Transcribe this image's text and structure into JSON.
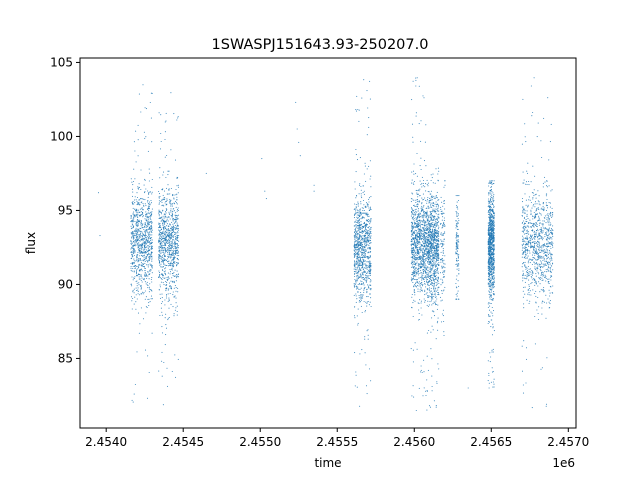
{
  "chart_data": {
    "type": "scatter",
    "title": "1SWASPJ151643.93-250207.0",
    "xlabel": "time",
    "ylabel": "flux",
    "x_offset_label": "1e6",
    "x_tick_labels": [
      "2.4540",
      "2.4545",
      "2.4550",
      "2.4555",
      "2.4560",
      "2.4565",
      "2.4570"
    ],
    "x_ticks": [
      2454000,
      2454500,
      2455000,
      2455500,
      2456000,
      2456500,
      2457000
    ],
    "y_tick_labels": [
      "85",
      "90",
      "95",
      "100",
      "105"
    ],
    "y_ticks": [
      85,
      90,
      95,
      100,
      105
    ],
    "xlim": [
      2453830,
      2457050
    ],
    "ylim": [
      80.3,
      105.3
    ],
    "grid": false,
    "legend": "none",
    "marker_color": "#1f77b4",
    "series": [
      {
        "clusters": [
          {
            "x_range": [
              2454160,
              2454300
            ],
            "y_center": 92.8,
            "y_range": [
              81.8,
              103.8
            ],
            "density": "high"
          },
          {
            "x_range": [
              2454340,
              2454470
            ],
            "y_center": 92.7,
            "y_range": [
              81.5,
              103.0
            ],
            "density": "high"
          },
          {
            "x_range": [
              2455610,
              2455720
            ],
            "y_center": 92.4,
            "y_range": [
              81.5,
              104.0
            ],
            "density": "high"
          },
          {
            "x_range": [
              2455980,
              2456080
            ],
            "y_center": 92.6,
            "y_range": [
              81.3,
              104.0
            ],
            "density": "high"
          },
          {
            "x_range": [
              2456080,
              2456160
            ],
            "y_center": 92.5,
            "y_range": [
              81.5,
              99.0
            ],
            "density": "high"
          },
          {
            "x_range": [
              2456170,
              2456200
            ],
            "y_center": 92.5,
            "y_range": [
              86.0,
              97.0
            ],
            "density": "low"
          },
          {
            "x_range": [
              2456270,
              2456290
            ],
            "y_center": 92.5,
            "y_range": [
              89.0,
              96.0
            ],
            "density": "low"
          },
          {
            "x_range": [
              2456480,
              2456520
            ],
            "y_center": 92.6,
            "y_range": [
              82.3,
              97.0
            ],
            "density": "high"
          },
          {
            "x_range": [
              2456700,
              2456900
            ],
            "y_center": 92.6,
            "y_range": [
              81.5,
              104.0
            ],
            "density": "high"
          }
        ],
        "isolated_points": [
          {
            "x": 2453950,
            "y": 96.2
          },
          {
            "x": 2453960,
            "y": 93.3
          },
          {
            "x": 2454650,
            "y": 97.5
          },
          {
            "x": 2455010,
            "y": 98.5
          },
          {
            "x": 2455030,
            "y": 96.3
          },
          {
            "x": 2455040,
            "y": 95.8
          },
          {
            "x": 2455230,
            "y": 102.3
          },
          {
            "x": 2455240,
            "y": 100.5
          },
          {
            "x": 2455250,
            "y": 99.6
          },
          {
            "x": 2455260,
            "y": 98.7
          },
          {
            "x": 2455350,
            "y": 96.3
          },
          {
            "x": 2455350,
            "y": 96.7
          },
          {
            "x": 2456350,
            "y": 83.0
          },
          {
            "x": 2456480,
            "y": 83.5
          }
        ]
      }
    ]
  }
}
